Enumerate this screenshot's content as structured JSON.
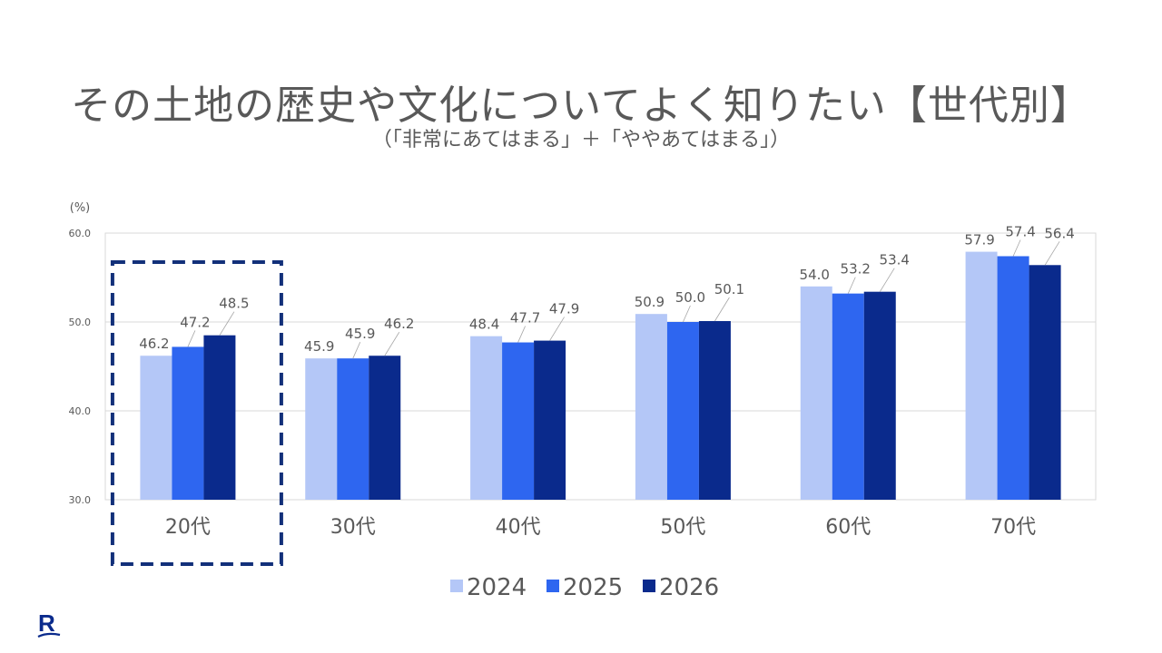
{
  "title": "その土地の歴史や文化についてよく知りたい【世代別】",
  "subtitle": "（「非常にあてはまる」＋「ややあてはまる」）",
  "chart_data": {
    "type": "bar",
    "unit_label": "(%)",
    "categories": [
      "20代",
      "30代",
      "40代",
      "50代",
      "60代",
      "70代"
    ],
    "series": [
      {
        "name": "2024",
        "color": "#B4C7F7",
        "values": [
          46.2,
          45.9,
          48.4,
          50.9,
          54.0,
          57.9
        ]
      },
      {
        "name": "2025",
        "color": "#2E66F0",
        "values": [
          47.2,
          45.9,
          47.7,
          50.0,
          53.2,
          57.4
        ]
      },
      {
        "name": "2026",
        "color": "#0A2A8C",
        "values": [
          48.5,
          46.2,
          47.9,
          50.1,
          53.4,
          56.4
        ]
      }
    ],
    "ylim": [
      30,
      60
    ],
    "yticks": [
      "30.0",
      "40.0",
      "50.0",
      "60.0"
    ],
    "grid": true,
    "legend_position": "bottom",
    "highlighted_category": "20代",
    "highlight_color": "#12307A"
  },
  "logo": {
    "text": "R",
    "icon": "brand-r-logo-icon",
    "color": "#0A2A8C"
  }
}
